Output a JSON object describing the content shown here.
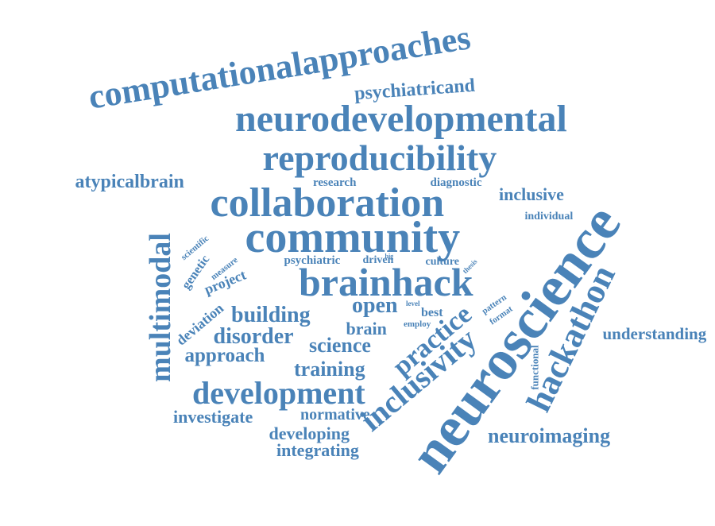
{
  "theme": {
    "word_color": "#4a83b8",
    "background": "#ffffff"
  },
  "words": [
    {
      "key": "computationalapproaches",
      "text": "computationalapproaches"
    },
    {
      "key": "psychiatricand",
      "text": "psychiatricand"
    },
    {
      "key": "neurodevelopmental",
      "text": "neurodevelopmental"
    },
    {
      "key": "reproducibility",
      "text": "reproducibility"
    },
    {
      "key": "atypicalbrain",
      "text": "atypicalbrain"
    },
    {
      "key": "research",
      "text": "research"
    },
    {
      "key": "diagnostic",
      "text": "diagnostic"
    },
    {
      "key": "collaboration",
      "text": "collaboration"
    },
    {
      "key": "inclusive",
      "text": "inclusive"
    },
    {
      "key": "individual",
      "text": "individual"
    },
    {
      "key": "community",
      "text": "community"
    },
    {
      "key": "neuroscience",
      "text": "neuroscience"
    },
    {
      "key": "multimodal",
      "text": "multimodal"
    },
    {
      "key": "scientific",
      "text": "scientific"
    },
    {
      "key": "genetic",
      "text": "genetic"
    },
    {
      "key": "measure",
      "text": "measure"
    },
    {
      "key": "project",
      "text": "project"
    },
    {
      "key": "psychiatric",
      "text": "psychiatric"
    },
    {
      "key": "driven",
      "text": "driven"
    },
    {
      "key": "big",
      "text": "big"
    },
    {
      "key": "culture",
      "text": "culture"
    },
    {
      "key": "thesis",
      "text": "thesis"
    },
    {
      "key": "brainhack",
      "text": "brainhack"
    },
    {
      "key": "hackathon",
      "text": "hackathon"
    },
    {
      "key": "deviation",
      "text": "deviation"
    },
    {
      "key": "building",
      "text": "building"
    },
    {
      "key": "open",
      "text": "open"
    },
    {
      "key": "level",
      "text": "level"
    },
    {
      "key": "best",
      "text": "best"
    },
    {
      "key": "employ",
      "text": "employ"
    },
    {
      "key": "pattern",
      "text": "pattern"
    },
    {
      "key": "format",
      "text": "format"
    },
    {
      "key": "practice",
      "text": "practice"
    },
    {
      "key": "brain",
      "text": "brain"
    },
    {
      "key": "disorder",
      "text": "disorder"
    },
    {
      "key": "science",
      "text": "science"
    },
    {
      "key": "approach",
      "text": "approach"
    },
    {
      "key": "understanding",
      "text": "understanding"
    },
    {
      "key": "training",
      "text": "training"
    },
    {
      "key": "inclusivity",
      "text": "inclusivity"
    },
    {
      "key": "functional",
      "text": "functional"
    },
    {
      "key": "development",
      "text": "development"
    },
    {
      "key": "investigate",
      "text": "investigate"
    },
    {
      "key": "normative",
      "text": "normative"
    },
    {
      "key": "developing",
      "text": "developing"
    },
    {
      "key": "neuroimaging",
      "text": "neuroimaging"
    },
    {
      "key": "integrating",
      "text": "integrating"
    }
  ]
}
